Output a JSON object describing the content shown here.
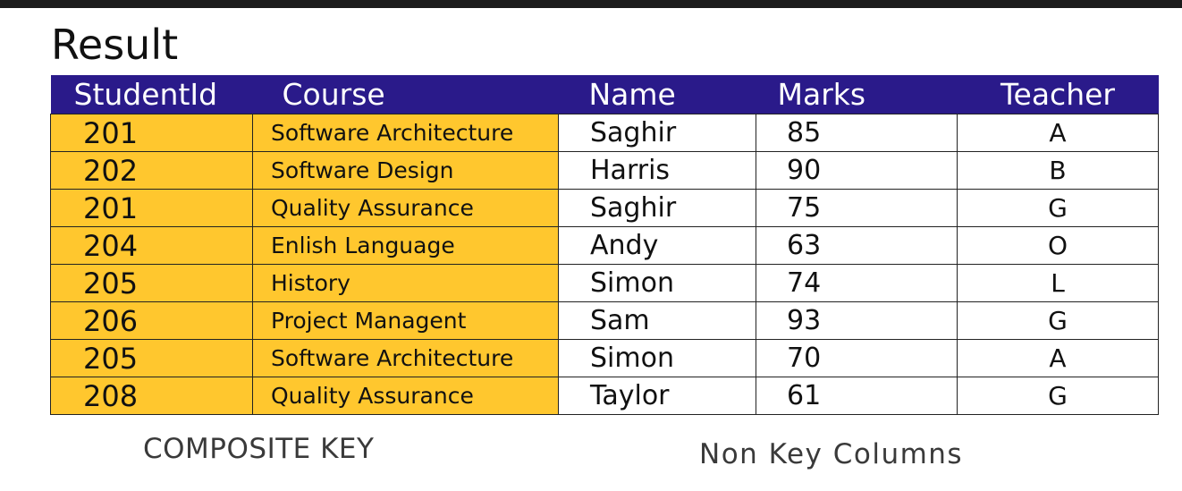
{
  "title": "Result",
  "table": {
    "headers": [
      "StudentId",
      "Course",
      "Name",
      "Marks",
      "Teacher"
    ],
    "rows": [
      [
        "201",
        "Software Architecture",
        "Saghir",
        "85",
        "A"
      ],
      [
        "202",
        "Software Design",
        "Harris",
        "90",
        "B"
      ],
      [
        "201",
        "Quality Assurance",
        "Saghir",
        "75",
        "G"
      ],
      [
        "204",
        "Enlish Language",
        "Andy",
        "63",
        "O"
      ],
      [
        "205",
        "History",
        "Simon",
        "74",
        "L"
      ],
      [
        "206",
        "Project Managent",
        "Sam",
        "93",
        "G"
      ],
      [
        "205",
        "Software Architecture",
        "Simon",
        "70",
        "A"
      ],
      [
        "208",
        "Quality Assurance",
        "Taylor",
        "61",
        "G"
      ]
    ]
  },
  "captions": {
    "key_label": "COMPOSITE KEY",
    "non_key_label": "Non Key Columns"
  },
  "colors": {
    "header_bg": "#2a1a8a",
    "key_bg": "#ffc72e"
  }
}
